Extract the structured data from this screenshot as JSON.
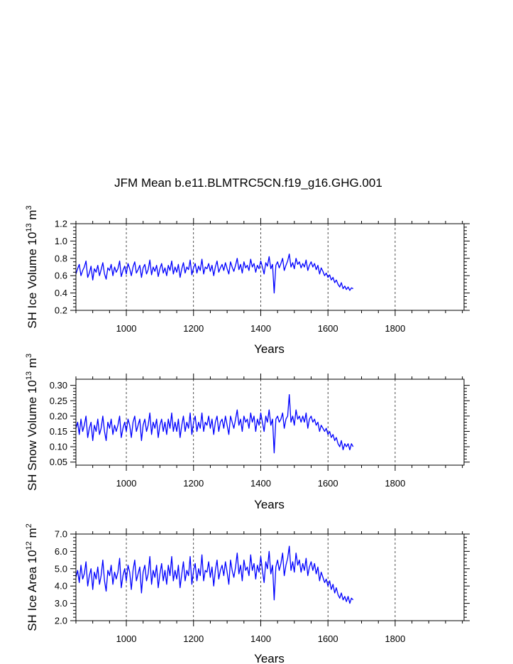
{
  "title": "JFM Mean b.e11.BLMTRC5CN.f19_g16.GHG.001",
  "line_color": "#0000ff",
  "chart_data": [
    {
      "type": "line",
      "title": "JFM Mean b.e11.BLMTRC5CN.f19_g16.GHG.001",
      "ylabel_pre": "SH Ice Volume 10",
      "ylabel_exp": "13",
      "ylabel_unit": "m",
      "ylabel_unit_exp": "3",
      "xlabel": "Years",
      "xlim": [
        850,
        2005
      ],
      "ylim": [
        0.2,
        1.2
      ],
      "xticks": [
        1000,
        1200,
        1400,
        1600,
        1800
      ],
      "xtick_labels": [
        "1000",
        "1200",
        "1400",
        "1600",
        "1800"
      ],
      "yticks": [
        0.2,
        0.4,
        0.6,
        0.8,
        1.0,
        1.2
      ],
      "ytick_labels": [
        "0.2",
        "0.4",
        "0.6",
        "0.8",
        "1.0",
        "1.2"
      ],
      "grid": "dashed vertical at x ticks",
      "series": [
        {
          "name": "SH Ice Volume",
          "x_start": 850,
          "x_step": 5,
          "values": [
            0.62,
            0.68,
            0.73,
            0.6,
            0.66,
            0.7,
            0.77,
            0.58,
            0.63,
            0.71,
            0.55,
            0.68,
            0.64,
            0.72,
            0.6,
            0.67,
            0.75,
            0.62,
            0.56,
            0.69,
            0.66,
            0.73,
            0.6,
            0.7,
            0.64,
            0.68,
            0.77,
            0.59,
            0.66,
            0.71,
            0.62,
            0.74,
            0.68,
            0.6,
            0.7,
            0.76,
            0.63,
            0.67,
            0.72,
            0.58,
            0.69,
            0.73,
            0.62,
            0.67,
            0.78,
            0.61,
            0.7,
            0.65,
            0.72,
            0.59,
            0.68,
            0.74,
            0.63,
            0.69,
            0.6,
            0.72,
            0.66,
            0.77,
            0.62,
            0.7,
            0.64,
            0.73,
            0.58,
            0.68,
            0.75,
            0.63,
            0.7,
            0.67,
            0.78,
            0.61,
            0.69,
            0.74,
            0.63,
            0.71,
            0.66,
            0.79,
            0.62,
            0.7,
            0.68,
            0.74,
            0.65,
            0.72,
            0.6,
            0.7,
            0.77,
            0.64,
            0.69,
            0.73,
            0.66,
            0.75,
            0.68,
            0.62,
            0.76,
            0.7,
            0.65,
            0.72,
            0.8,
            0.67,
            0.73,
            0.63,
            0.76,
            0.69,
            0.72,
            0.66,
            0.79,
            0.7,
            0.74,
            0.64,
            0.72,
            0.68,
            0.77,
            0.7,
            0.62,
            0.75,
            0.71,
            0.82,
            0.68,
            0.73,
            0.4,
            0.72,
            0.76,
            0.69,
            0.74,
            0.8,
            0.66,
            0.72,
            0.77,
            0.85,
            0.7,
            0.75,
            0.68,
            0.8,
            0.73,
            0.76,
            0.69,
            0.74,
            0.7,
            0.78,
            0.66,
            0.72,
            0.76,
            0.7,
            0.74,
            0.67,
            0.72,
            0.62,
            0.69,
            0.65,
            0.6,
            0.63,
            0.58,
            0.61,
            0.55,
            0.58,
            0.52,
            0.55,
            0.5,
            0.47,
            0.52,
            0.45,
            0.48,
            0.44,
            0.47,
            0.43,
            0.46,
            0.45
          ]
        }
      ]
    },
    {
      "type": "line",
      "ylabel_pre": "SH Snow Volume 10",
      "ylabel_exp": "13",
      "ylabel_unit": "m",
      "ylabel_unit_exp": "3",
      "xlabel": "Years",
      "xlim": [
        850,
        2005
      ],
      "ylim": [
        0.04,
        0.32
      ],
      "xticks": [
        1000,
        1200,
        1400,
        1600,
        1800
      ],
      "xtick_labels": [
        "1000",
        "1200",
        "1400",
        "1600",
        "1800"
      ],
      "yticks": [
        0.05,
        0.1,
        0.15,
        0.2,
        0.25,
        0.3
      ],
      "ytick_labels": [
        "0.05",
        "0.10",
        "0.15",
        "0.20",
        "0.25",
        "0.30"
      ],
      "grid": "dashed vertical at x ticks",
      "series": [
        {
          "name": "SH Snow Volume",
          "x_start": 850,
          "x_step": 5,
          "values": [
            0.16,
            0.18,
            0.14,
            0.19,
            0.15,
            0.17,
            0.2,
            0.13,
            0.16,
            0.18,
            0.12,
            0.17,
            0.15,
            0.19,
            0.14,
            0.16,
            0.2,
            0.15,
            0.12,
            0.18,
            0.16,
            0.19,
            0.14,
            0.17,
            0.15,
            0.17,
            0.2,
            0.13,
            0.16,
            0.18,
            0.15,
            0.19,
            0.17,
            0.13,
            0.18,
            0.2,
            0.15,
            0.17,
            0.19,
            0.12,
            0.17,
            0.19,
            0.15,
            0.17,
            0.21,
            0.14,
            0.18,
            0.16,
            0.19,
            0.13,
            0.17,
            0.19,
            0.15,
            0.18,
            0.14,
            0.19,
            0.16,
            0.21,
            0.15,
            0.18,
            0.15,
            0.19,
            0.13,
            0.17,
            0.2,
            0.15,
            0.18,
            0.16,
            0.21,
            0.14,
            0.18,
            0.2,
            0.15,
            0.18,
            0.16,
            0.21,
            0.15,
            0.18,
            0.17,
            0.2,
            0.16,
            0.19,
            0.14,
            0.18,
            0.2,
            0.15,
            0.18,
            0.19,
            0.16,
            0.2,
            0.17,
            0.14,
            0.2,
            0.18,
            0.16,
            0.19,
            0.22,
            0.17,
            0.19,
            0.15,
            0.2,
            0.18,
            0.19,
            0.16,
            0.21,
            0.18,
            0.2,
            0.15,
            0.19,
            0.17,
            0.21,
            0.18,
            0.15,
            0.2,
            0.18,
            0.22,
            0.17,
            0.19,
            0.08,
            0.19,
            0.2,
            0.18,
            0.19,
            0.21,
            0.16,
            0.19,
            0.2,
            0.27,
            0.18,
            0.2,
            0.17,
            0.22,
            0.19,
            0.2,
            0.18,
            0.2,
            0.18,
            0.21,
            0.16,
            0.19,
            0.2,
            0.18,
            0.19,
            0.17,
            0.18,
            0.15,
            0.17,
            0.16,
            0.15,
            0.16,
            0.14,
            0.15,
            0.13,
            0.14,
            0.12,
            0.13,
            0.11,
            0.1,
            0.12,
            0.09,
            0.11,
            0.1,
            0.11,
            0.09,
            0.11,
            0.1
          ]
        }
      ]
    },
    {
      "type": "line",
      "ylabel_pre": "SH Ice Area 10",
      "ylabel_exp": "12",
      "ylabel_unit": "m",
      "ylabel_unit_exp": "2",
      "xlabel": "Years",
      "xlim": [
        850,
        2005
      ],
      "ylim": [
        2.0,
        7.0
      ],
      "xticks": [
        1000,
        1200,
        1400,
        1600,
        1800
      ],
      "xtick_labels": [
        "1000",
        "1200",
        "1400",
        "1600",
        "1800"
      ],
      "yticks": [
        2.0,
        3.0,
        4.0,
        5.0,
        6.0,
        7.0
      ],
      "ytick_labels": [
        "2.0",
        "3.0",
        "4.0",
        "5.0",
        "6.0",
        "7.0"
      ],
      "grid": "dashed vertical at x ticks",
      "series": [
        {
          "name": "SH Ice Area",
          "x_start": 850,
          "x_step": 5,
          "values": [
            4.5,
            4.9,
            4.2,
            5.2,
            4.4,
            4.7,
            5.4,
            4.0,
            4.6,
            5.0,
            3.8,
            4.8,
            4.4,
            5.1,
            4.1,
            4.6,
            5.5,
            4.3,
            3.7,
            4.9,
            4.6,
            5.2,
            4.1,
            4.8,
            4.4,
            4.8,
            5.6,
            3.9,
            4.6,
            5.0,
            4.3,
            5.2,
            4.8,
            3.8,
            4.9,
            5.5,
            4.3,
            4.7,
            5.1,
            3.6,
            4.8,
            5.2,
            4.3,
            4.7,
            5.7,
            4.1,
            4.9,
            4.5,
            5.2,
            3.9,
            4.7,
            5.3,
            4.3,
            4.9,
            4.1,
            5.2,
            4.6,
            5.7,
            4.3,
            4.9,
            4.4,
            5.2,
            3.9,
            4.7,
            5.4,
            4.3,
            4.9,
            4.6,
            5.7,
            4.1,
            4.9,
            5.3,
            4.3,
            5.0,
            4.6,
            5.8,
            4.3,
            4.9,
            4.8,
            5.4,
            4.5,
            5.1,
            4.0,
            4.9,
            5.5,
            4.4,
            4.9,
            5.2,
            4.6,
            5.4,
            4.8,
            4.1,
            5.5,
            4.9,
            4.5,
            5.1,
            5.9,
            4.7,
            5.2,
            4.3,
            5.5,
            4.9,
            5.1,
            4.6,
            5.8,
            4.9,
            5.3,
            4.4,
            5.2,
            4.8,
            5.7,
            4.9,
            4.2,
            5.4,
            5.0,
            6.0,
            4.7,
            5.2,
            3.2,
            5.1,
            5.5,
            4.9,
            5.3,
            5.9,
            4.6,
            5.2,
            5.6,
            6.3,
            4.9,
            5.4,
            4.8,
            5.9,
            5.2,
            5.5,
            4.8,
            5.3,
            4.9,
            5.6,
            4.6,
            5.1,
            5.4,
            4.9,
            5.3,
            4.7,
            5.1,
            4.3,
            4.8,
            4.5,
            4.2,
            4.4,
            4.0,
            4.3,
            3.8,
            4.1,
            3.6,
            3.9,
            3.5,
            3.3,
            3.6,
            3.2,
            3.4,
            3.1,
            3.4,
            3.0,
            3.3,
            3.2
          ]
        }
      ]
    }
  ]
}
